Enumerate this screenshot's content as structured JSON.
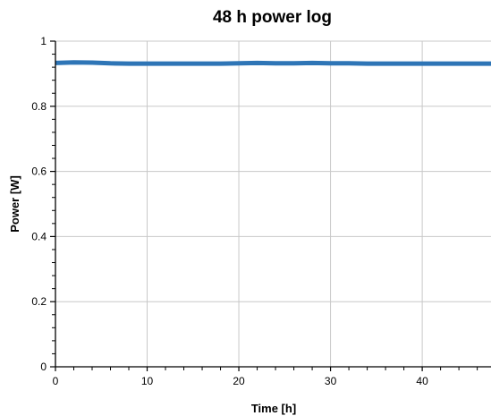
{
  "chart_data": {
    "type": "line",
    "title": "48 h power log",
    "xlabel": "Time [h]",
    "ylabel": "Power [W]",
    "xlim": [
      0,
      47.5
    ],
    "ylim": [
      0,
      1
    ],
    "xticks": [
      0,
      10,
      20,
      30,
      40
    ],
    "xtick_labels": [
      "0",
      "10",
      "20",
      "30",
      "40"
    ],
    "yticks": [
      0,
      0.2,
      0.4,
      0.6,
      0.8,
      1
    ],
    "ytick_labels": [
      "0",
      "0.2",
      "0.4",
      "0.6",
      "0.8",
      "1"
    ],
    "grid": true,
    "series": [
      {
        "color": "#2e75b6",
        "x": [
          0,
          2,
          4,
          6,
          8,
          10,
          12,
          14,
          16,
          18,
          20,
          22,
          24,
          26,
          28,
          30,
          32,
          34,
          36,
          38,
          40,
          42,
          44,
          46,
          47.5
        ],
        "values": [
          0.933,
          0.935,
          0.934,
          0.932,
          0.931,
          0.931,
          0.931,
          0.931,
          0.931,
          0.931,
          0.932,
          0.933,
          0.932,
          0.932,
          0.933,
          0.932,
          0.932,
          0.931,
          0.931,
          0.931,
          0.931,
          0.931,
          0.931,
          0.931,
          0.931
        ]
      }
    ]
  }
}
